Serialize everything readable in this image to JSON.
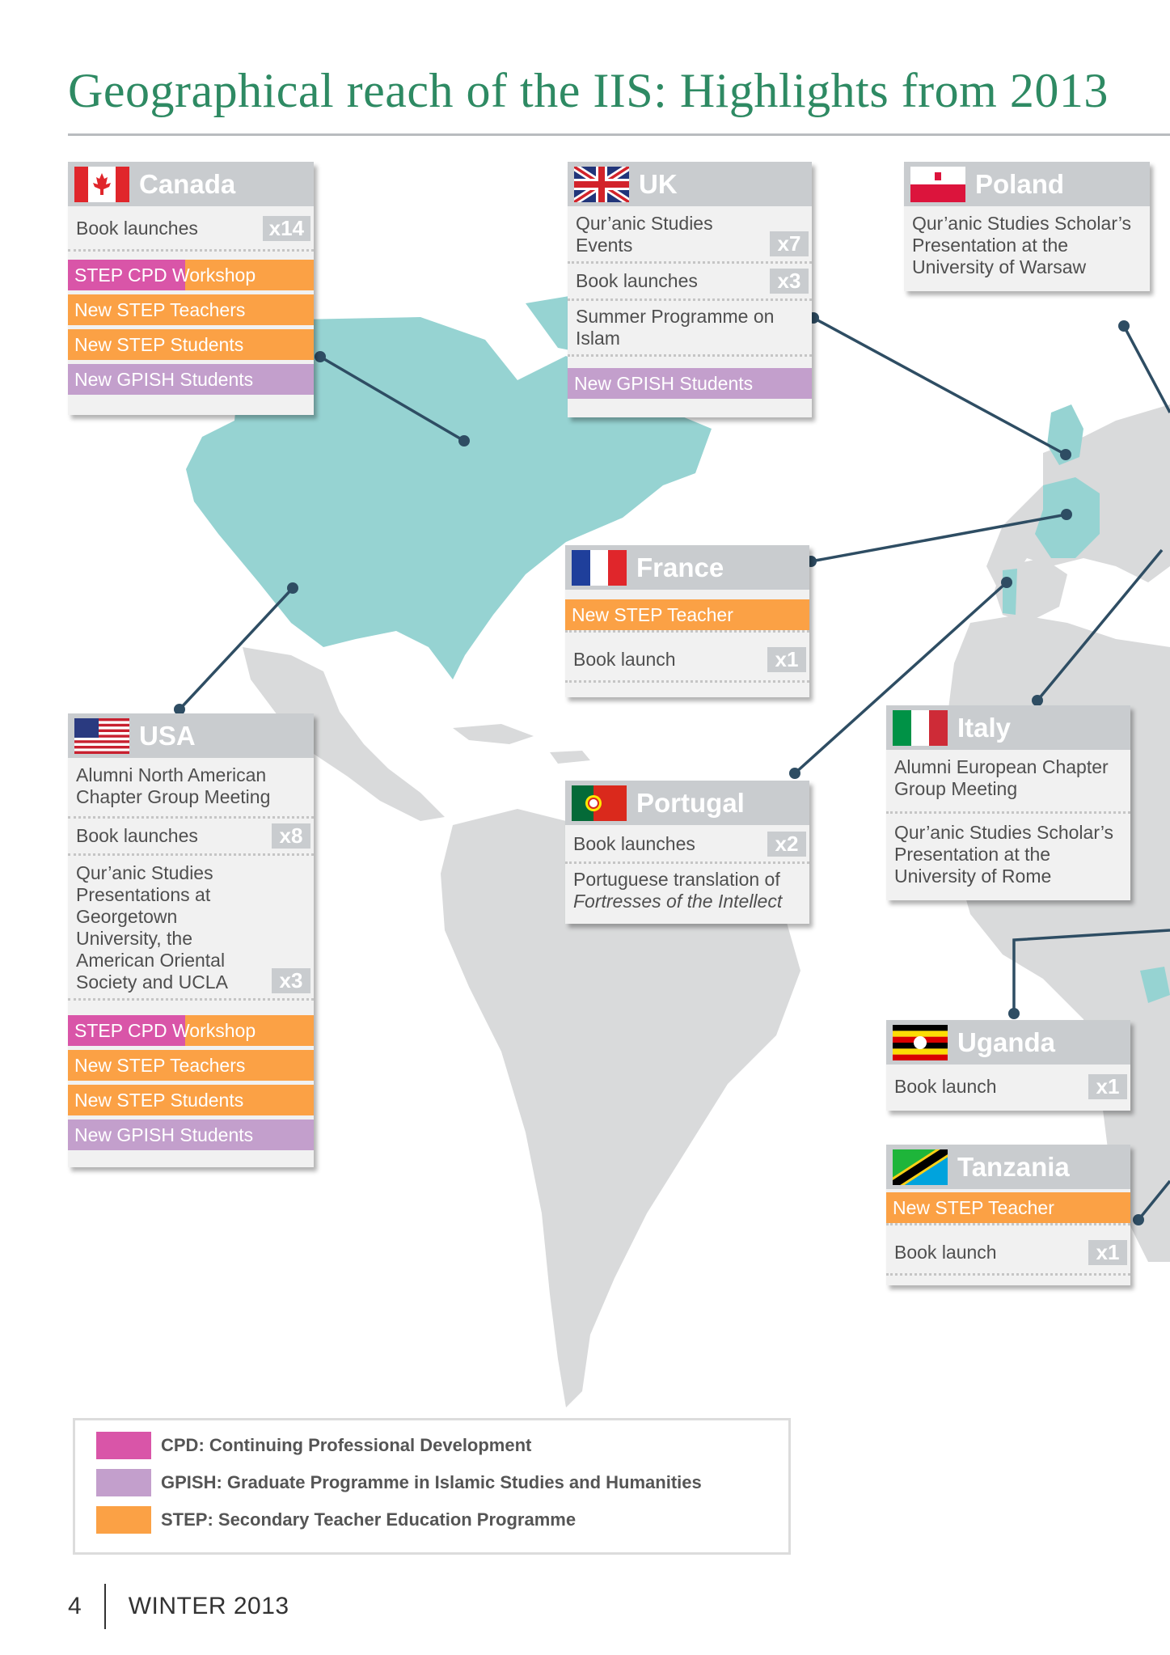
{
  "title": "Geographical reach of the IIS: Highlights from 2013",
  "colors": {
    "title": "#2e8a63",
    "step": "#fba145",
    "gpish": "#c39fcc",
    "cpd": "#d955a8",
    "map_americas": "#96d3d2",
    "map_land": "#d9dadb",
    "connector": "#2e4d63"
  },
  "cards": {
    "canada": {
      "name": "Canada",
      "flag": "canada-flag-icon",
      "book_launches": "Book launches",
      "book_count": "x14",
      "cpd_bar": "STEP CPD  Workshop",
      "new_teachers": "New STEP Teachers",
      "new_students": "New STEP Students",
      "gpish": "New GPISH Students"
    },
    "uk": {
      "name": "UK",
      "flag": "uk-flag-icon",
      "quranic": "Qur’anic Studies Events",
      "quranic_count": "x7",
      "book_launches": "Book launches",
      "book_count": "x3",
      "summer": "Summer Programme on Islam",
      "gpish": "New GPISH Students"
    },
    "poland": {
      "name": "Poland",
      "flag": "poland-flag-icon",
      "text": "Qur’anic Studies Scholar’s Presentation at the University of Warsaw"
    },
    "france": {
      "name": "France",
      "flag": "france-flag-icon",
      "new_teacher": "New STEP Teacher",
      "book_launch": "Book launch",
      "book_count": "x1"
    },
    "usa": {
      "name": "USA",
      "flag": "usa-flag-icon",
      "alumni": "Alumni North American Chapter Group Meeting",
      "book_launches": "Book launches",
      "book_count": "x8",
      "quranic": "Qur’anic Studies Presentations at Georgetown University, the American Oriental Society and UCLA",
      "quranic_count": "x3",
      "cpd_bar": "STEP CPD  Workshop",
      "new_teachers": "New STEP Teachers",
      "new_students": "New STEP Students",
      "gpish": "New GPISH Students"
    },
    "portugal": {
      "name": "Portugal",
      "flag": "portugal-flag-icon",
      "book_launches": "Book launches",
      "book_count": "x2",
      "translation": "Portuguese translation of",
      "translation_title": "Fortresses of the Intellect"
    },
    "italy": {
      "name": "Italy",
      "flag": "italy-flag-icon",
      "alumni": "Alumni European Chapter Group Meeting",
      "quranic": "Qur’anic Studies Scholar’s Presentation at the University of Rome"
    },
    "uganda": {
      "name": "Uganda",
      "flag": "uganda-flag-icon",
      "book_launch": "Book launch",
      "book_count": "x1"
    },
    "tanzania": {
      "name": "Tanzania",
      "flag": "tanzania-flag-icon",
      "new_teacher": "New STEP Teacher",
      "book_launch": "Book launch",
      "book_count": "x1"
    }
  },
  "legend": {
    "cpd": "CPD: Continuing Professional Development",
    "gpish": "GPISH:  Graduate Programme in Islamic Studies and Humanities",
    "step": "STEP: Secondary Teacher Education Programme"
  },
  "footer": {
    "page": "4",
    "issue": "WINTER 2013"
  }
}
